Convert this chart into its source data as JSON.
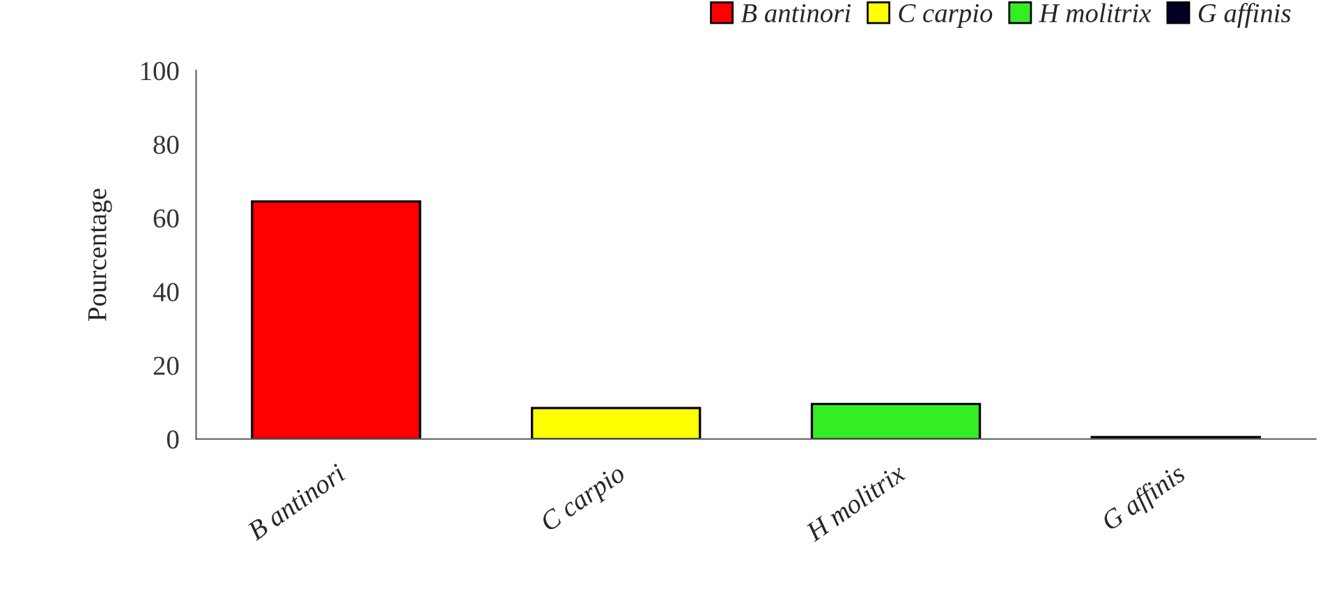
{
  "chart_data": {
    "type": "bar",
    "ylabel": "Pourcentage",
    "categories": [
      "B antinori",
      "C carpio",
      "H molitrix",
      "G affinis"
    ],
    "series": [
      {
        "name": "B antinori",
        "color": "#ff0000",
        "values": [
          64.5,
          null,
          null,
          null
        ]
      },
      {
        "name": "C carpio",
        "color": "#ffff00",
        "values": [
          null,
          8.4,
          null,
          null
        ]
      },
      {
        "name": "H molitrix",
        "color": "#33ee22",
        "values": [
          null,
          null,
          9.5,
          null
        ]
      },
      {
        "name": "G affinis",
        "color": "#000022",
        "values": [
          null,
          null,
          null,
          0.5
        ]
      }
    ],
    "ylim": [
      0,
      100
    ],
    "yticks": [
      0,
      20,
      40,
      60,
      80,
      100
    ],
    "grid": false,
    "legend": "top right"
  }
}
